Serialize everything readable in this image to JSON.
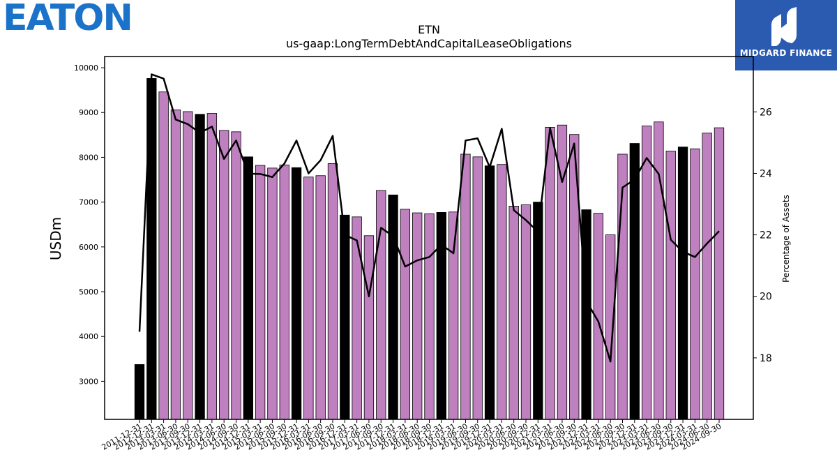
{
  "logos": {
    "left_text": "EATON",
    "right_text": "MIDGARD FINANCE"
  },
  "chart_data": {
    "type": "bar",
    "title": "ETN",
    "subtitle": "us-gaap:LongTermDebtAndCapitalLeaseObligations",
    "ylabel": "USDm",
    "y2label": "Percentage of Assets",
    "ylim": [
      2150,
      10250
    ],
    "y2lim": [
      16.0,
      27.8
    ],
    "yticks": [
      3000,
      4000,
      5000,
      6000,
      7000,
      8000,
      9000,
      10000
    ],
    "y2ticks": [
      18,
      20,
      22,
      24,
      26
    ],
    "bar_colors": {
      "annual": "#000000",
      "quarterly": "#bf80bf"
    },
    "line_color": "#000000",
    "grid": false,
    "categories": [
      "2011-12-31",
      "2012-12-31",
      "2013-03-31",
      "2013-06-30",
      "2013-09-30",
      "2013-12-31",
      "2014-03-31",
      "2014-06-30",
      "2014-09-30",
      "2014-12-31",
      "2015-03-31",
      "2015-06-30",
      "2015-09-30",
      "2015-12-31",
      "2016-03-31",
      "2016-06-30",
      "2016-09-30",
      "2016-12-31",
      "2017-03-31",
      "2017-06-30",
      "2017-09-30",
      "2017-12-31",
      "2018-03-31",
      "2018-06-30",
      "2018-09-30",
      "2018-12-31",
      "2019-03-31",
      "2019-06-30",
      "2019-09-30",
      "2019-12-31",
      "2020-03-31",
      "2020-06-30",
      "2020-09-30",
      "2020-12-31",
      "2021-03-31",
      "2021-06-30",
      "2021-09-30",
      "2021-12-31",
      "2022-03-31",
      "2022-06-30",
      "2022-09-30",
      "2022-12-31",
      "2023-03-31",
      "2023-06-30",
      "2023-09-30",
      "2023-12-31",
      "2024-03-31",
      "2024-06-30",
      "2024-09-30"
    ],
    "annual": [
      true,
      true,
      false,
      false,
      false,
      true,
      false,
      false,
      false,
      true,
      false,
      false,
      false,
      true,
      false,
      false,
      false,
      true,
      false,
      false,
      false,
      true,
      false,
      false,
      false,
      true,
      false,
      false,
      false,
      true,
      false,
      false,
      false,
      true,
      false,
      false,
      false,
      true,
      false,
      false,
      false,
      true,
      false,
      false,
      false,
      true,
      false,
      false,
      false
    ],
    "values": [
      3375,
      9760,
      9460,
      9060,
      9020,
      8960,
      8980,
      8600,
      8570,
      8010,
      7820,
      7760,
      7830,
      7770,
      7560,
      7590,
      7860,
      6710,
      6670,
      6250,
      7260,
      7160,
      6840,
      6760,
      6740,
      6770,
      6780,
      8070,
      8010,
      7810,
      7840,
      6910,
      6940,
      7000,
      8670,
      8720,
      8510,
      6830,
      6750,
      6270,
      8070,
      8310,
      8700,
      8790,
      8140,
      8230,
      8190,
      8540,
      8660
    ],
    "pct_of_assets": [
      18.85,
      27.22,
      27.08,
      25.75,
      25.6,
      25.32,
      25.52,
      24.47,
      25.07,
      23.99,
      23.98,
      23.88,
      24.32,
      25.07,
      24.0,
      24.43,
      25.22,
      22.0,
      21.82,
      20.0,
      22.23,
      21.96,
      20.97,
      21.17,
      21.28,
      21.68,
      21.4,
      25.07,
      25.14,
      24.2,
      25.45,
      22.8,
      22.48,
      22.1,
      25.47,
      23.72,
      24.97,
      19.85,
      19.18,
      17.88,
      23.54,
      23.8,
      24.5,
      23.98,
      21.84,
      21.45,
      21.28,
      21.72,
      22.12
    ]
  }
}
